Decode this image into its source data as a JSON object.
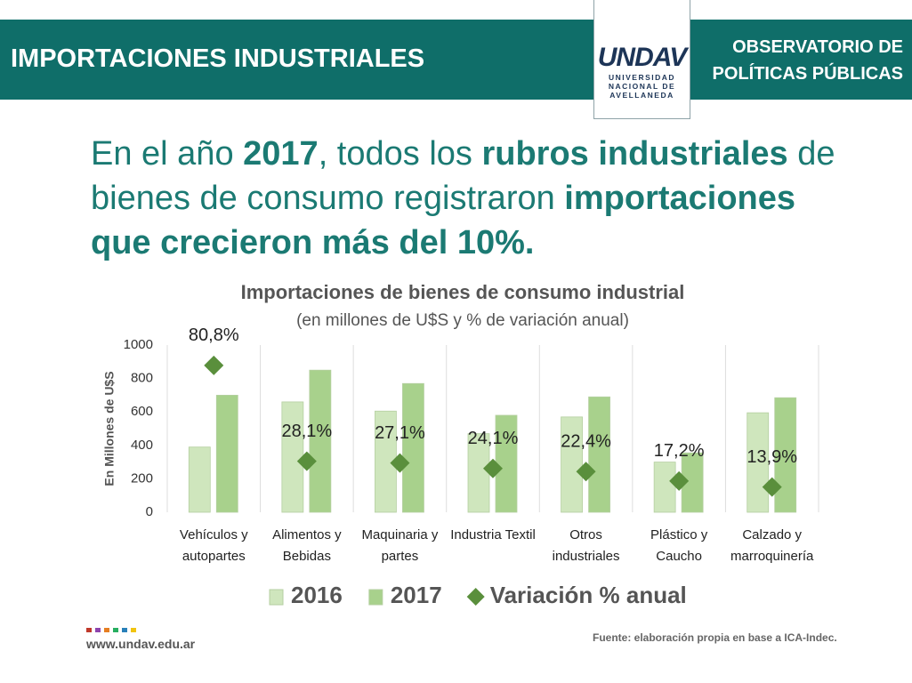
{
  "header": {
    "title": "IMPORTACIONES INDUSTRIALES",
    "logo": "UNDAV",
    "logo_lines": [
      "UNIVERSIDAD",
      "NACIONAL DE",
      "AVELLANEDA"
    ],
    "observatory_lines": [
      "OBSERVATORIO DE",
      "POLÍTICAS PÚBLICAS"
    ]
  },
  "headline": {
    "parts": [
      "En el año ",
      "2017",
      ", todos los ",
      "rubros industriales",
      " de bienes de consumo registraron ",
      "importaciones que crecieron más del 10%."
    ]
  },
  "chart_data": {
    "type": "bar",
    "title": "Importaciones de bienes de consumo industrial",
    "subtitle": "(en millones de U$S y % de variación anual)",
    "y_label": "En Millones de U$S",
    "categories": [
      "Vehículos y autopartes",
      "Alimentos y Bebidas",
      "Maquinaria y partes",
      "Industria Textil",
      "Otros industriales",
      "Plástico y Caucho",
      "Calzado y marroquinería"
    ],
    "series": [
      {
        "name": "2016",
        "color": "#cfe6bd",
        "values": [
          390,
          660,
          605,
          470,
          570,
          300,
          595
        ]
      },
      {
        "name": "2017",
        "color": "#a8d18c",
        "values": [
          700,
          850,
          770,
          580,
          690,
          355,
          685
        ]
      },
      {
        "name": "Variación % anual",
        "type": "scatter",
        "marker": "diamond",
        "axis": "y2",
        "color": "#5a8f3c",
        "values": [
          80.8,
          28.1,
          27.1,
          24.1,
          22.4,
          17.2,
          13.9
        ],
        "value_labels": [
          "80,8%",
          "28,1%",
          "27,1%",
          "24,1%",
          "22,4%",
          "17,2%",
          "13,9%"
        ]
      }
    ],
    "ylim": [
      0,
      1000
    ],
    "yticks": [
      0,
      200,
      400,
      600,
      800,
      1000
    ],
    "y2lim": [
      0,
      92
    ],
    "legend": "bottom"
  },
  "footer": {
    "source": "Fuente: elaboración propia en base a ICA-Indec.",
    "website": "www.undav.edu.ar"
  }
}
